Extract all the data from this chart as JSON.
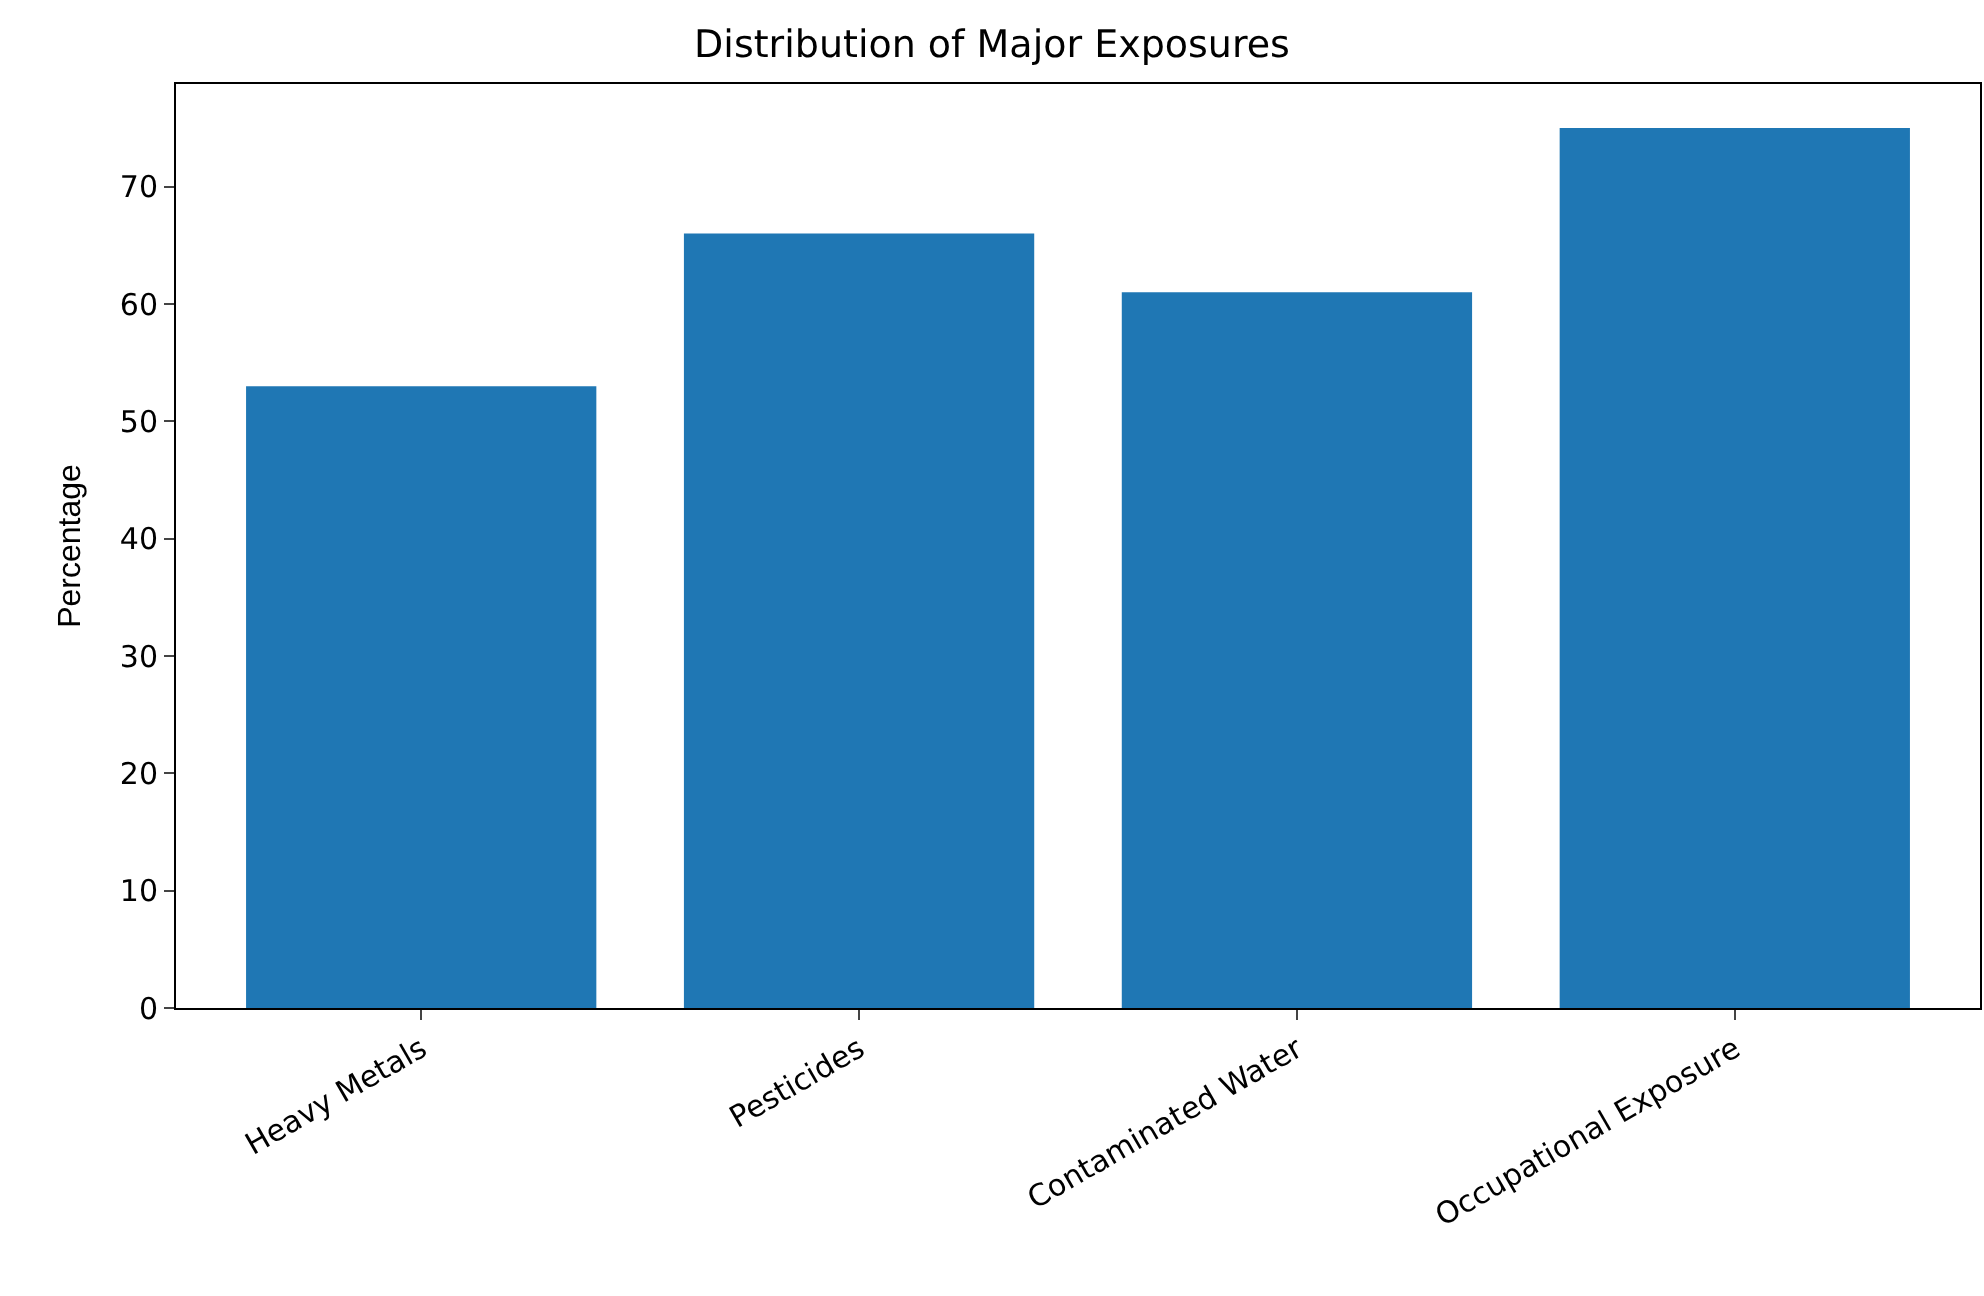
{
  "chart_data": {
    "type": "bar",
    "title": "Distribution of Major Exposures",
    "ylabel": "Percentage",
    "categories": [
      "Heavy Metals",
      "Pesticides",
      "Contaminated Water",
      "Occupational Exposure"
    ],
    "values": [
      53,
      66,
      61,
      75
    ],
    "color": "#1f77b4",
    "ylim": [
      0,
      78.75
    ],
    "yticks": [
      0,
      10,
      20,
      30,
      40,
      50,
      60,
      70
    ],
    "legend": false
  }
}
